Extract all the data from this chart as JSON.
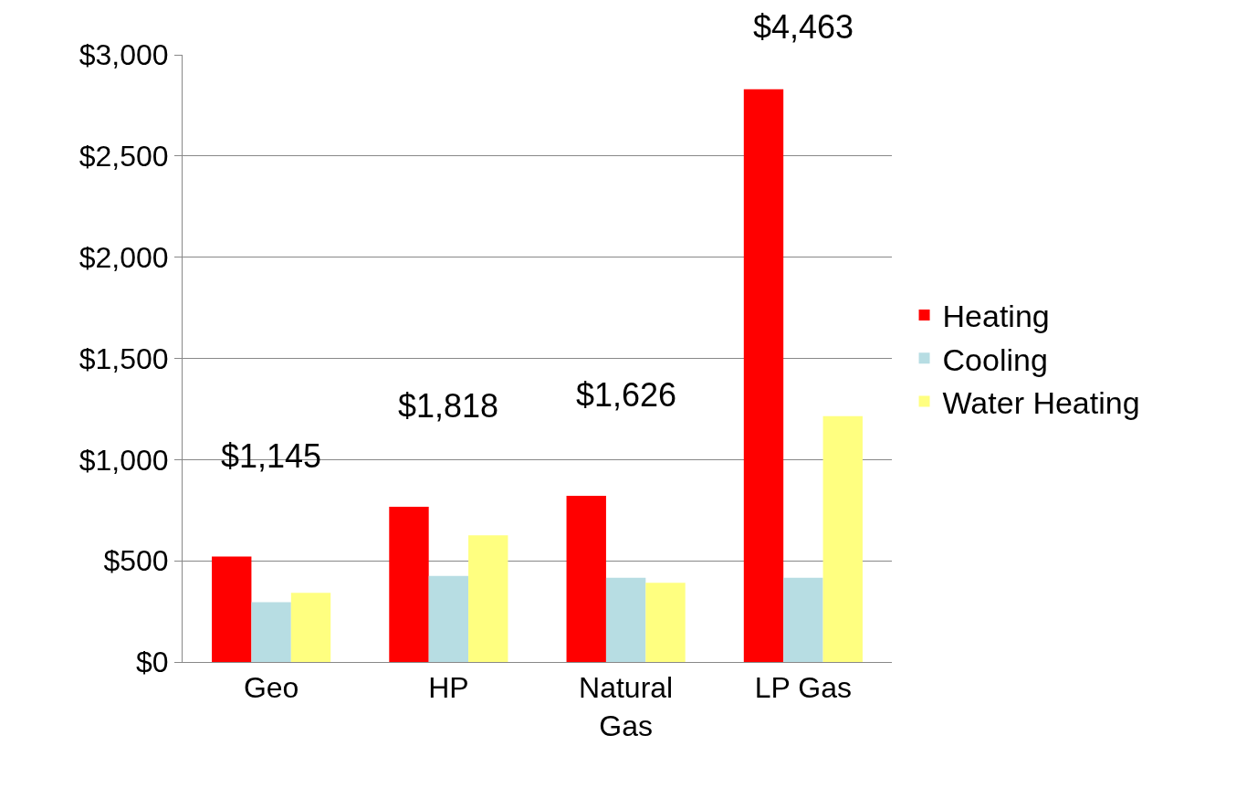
{
  "chart_data": {
    "type": "bar",
    "categories": [
      "Geo",
      "HP",
      "Natural Gas",
      "LP Gas"
    ],
    "series": [
      {
        "name": "Heating",
        "color": "#ff0000",
        "values": [
          521,
          767,
          821,
          2830
        ]
      },
      {
        "name": "Cooling",
        "color": "#b7dde3",
        "values": [
          295,
          425,
          416,
          416
        ]
      },
      {
        "name": "Water Heating",
        "color": "#ffff80",
        "values": [
          342,
          626,
          391,
          1215
        ]
      }
    ],
    "ylim": [
      0,
      3000
    ],
    "yticks": [
      {
        "value": 0,
        "label": "$0"
      },
      {
        "value": 500,
        "label": "$500"
      },
      {
        "value": 1000,
        "label": "$1,000"
      },
      {
        "value": 1500,
        "label": "$1,500"
      },
      {
        "value": 2000,
        "label": "$2,000"
      },
      {
        "value": 2500,
        "label": "$2,500"
      },
      {
        "value": 3000,
        "label": "$3,000"
      }
    ],
    "annotations": [
      "$1,145",
      "$1,818",
      "$1,626",
      "$4,463"
    ],
    "grid": "y",
    "legend": "right"
  }
}
